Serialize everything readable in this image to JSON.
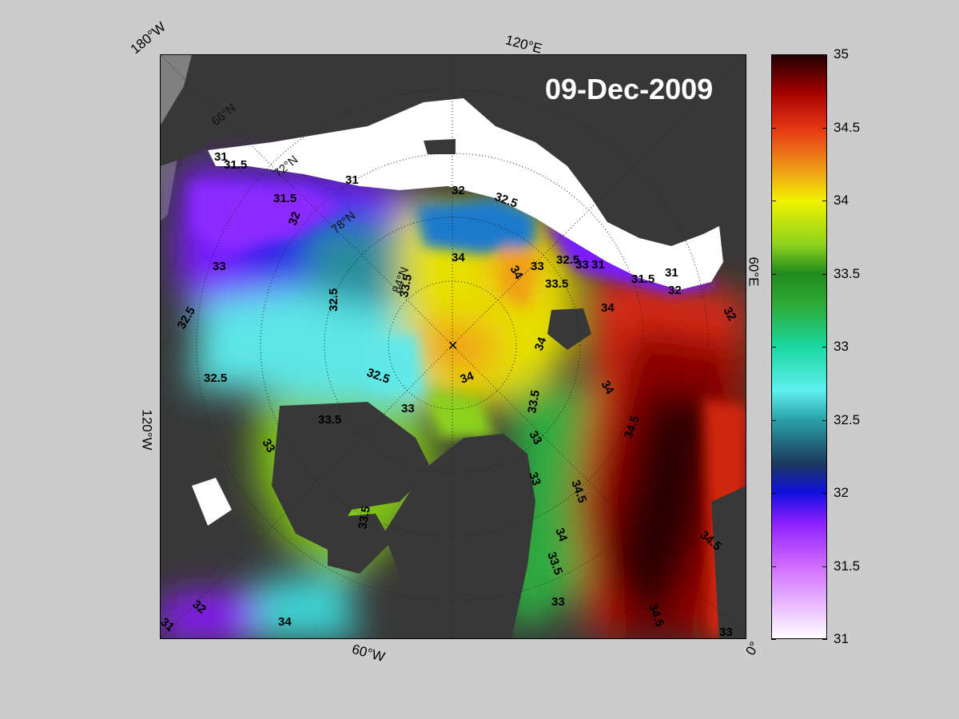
{
  "date_label": "09-Dec-2009",
  "map": {
    "projection": "polar-stereographic",
    "edge_labels": {
      "top_left": "180°W",
      "top_center": "120°E",
      "right": "60°E",
      "left": "120°W",
      "bottom_center": "60°W",
      "bottom_right": "0°"
    },
    "latitude_labels": [
      "66°N",
      "72°N",
      "78°N",
      "84°N"
    ],
    "contour_labels": [
      "31",
      "31.5",
      "31",
      "31.5",
      "32",
      "32",
      "32.5",
      "34",
      "34",
      "33.5",
      "32.5",
      "33",
      "33",
      "34",
      "32.5",
      "33.5",
      "34",
      "34",
      "32.5",
      "32.5",
      "33",
      "33.5",
      "33",
      "34",
      "33.5",
      "33",
      "34.5",
      "33",
      "34.5",
      "34",
      "33.5",
      "33.5",
      "34.5",
      "33",
      "34.5",
      "32",
      "31",
      "34",
      "32.5",
      "33",
      "33",
      "31.5",
      "31",
      "32",
      "32",
      "31"
    ],
    "colors": {
      "land": "#383838",
      "ice": "#ffffff",
      "outside": "#808080"
    }
  },
  "colorbar": {
    "min": 31,
    "max": 35,
    "ticks": [
      "35",
      "34.5",
      "34",
      "33.5",
      "33",
      "32.5",
      "32",
      "31.5",
      "31"
    ],
    "stops": [
      {
        "value": 31.0,
        "color": "#ffffff"
      },
      {
        "value": 31.5,
        "color": "#cf6bff"
      },
      {
        "value": 31.8,
        "color": "#8a1fff"
      },
      {
        "value": 32.0,
        "color": "#1010e0"
      },
      {
        "value": 32.2,
        "color": "#1c3a5c"
      },
      {
        "value": 32.5,
        "color": "#2aa0a8"
      },
      {
        "value": 32.7,
        "color": "#5ff0f0"
      },
      {
        "value": 33.0,
        "color": "#19d8a0"
      },
      {
        "value": 33.3,
        "color": "#2fa832"
      },
      {
        "value": 33.5,
        "color": "#1f8a1f"
      },
      {
        "value": 33.7,
        "color": "#8cd21c"
      },
      {
        "value": 34.0,
        "color": "#f2f200"
      },
      {
        "value": 34.2,
        "color": "#f0a018"
      },
      {
        "value": 34.5,
        "color": "#e63414"
      },
      {
        "value": 34.75,
        "color": "#a00000"
      },
      {
        "value": 35.0,
        "color": "#200000"
      }
    ]
  }
}
